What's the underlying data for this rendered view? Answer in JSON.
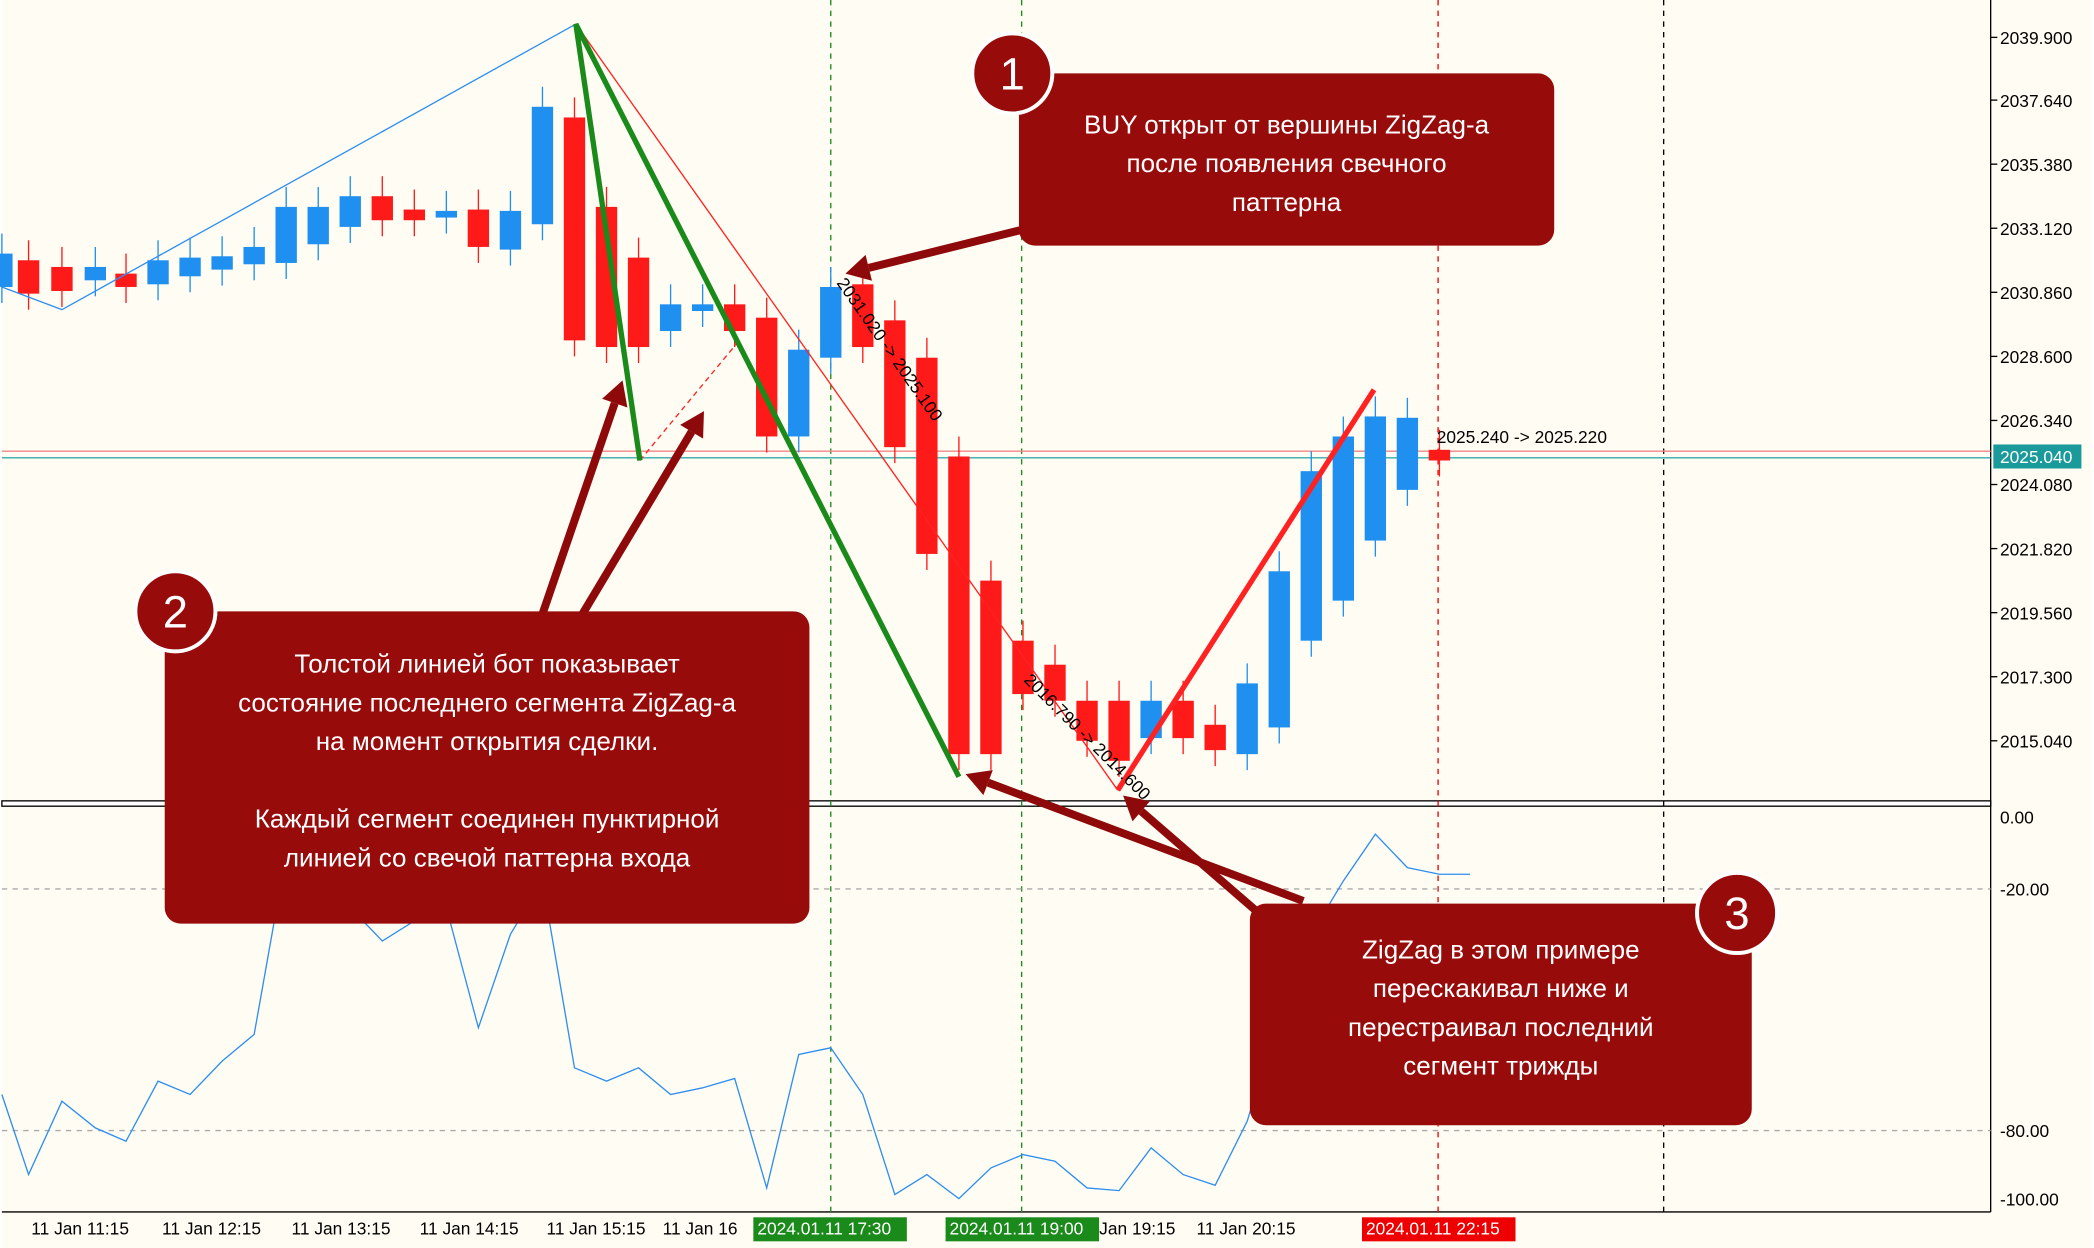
{
  "price_axis": [
    "2039.900",
    "2037.640",
    "2035.380",
    "2033.120",
    "2030.860",
    "2028.600",
    "2026.340",
    "2024.080",
    "2021.820",
    "2019.560",
    "2017.300",
    "2015.040"
  ],
  "current_price": "2025.040",
  "indicator_axis": [
    "0.00",
    "-20.00",
    "-80.00",
    "-100.00"
  ],
  "time_axis": [
    "11 Jan 11:15",
    "11 Jan 12:15",
    "11 Jan 13:15",
    "11 Jan 14:15",
    "11 Jan 15:15",
    "11 Jan 16",
    "11 Jan 19:15",
    "11 Jan 20:15",
    ":15"
  ],
  "time_markers": [
    "2024.01.11 17:30",
    "2024.01.11 19:00",
    "2024.01.11 22:15"
  ],
  "trade_labels": [
    "2025.240 -> 2025.220",
    "2031.020 -> 2025.100",
    "2016.790 -> 2014.600"
  ],
  "callouts": [
    {
      "number": "1",
      "lines": [
        "BUY открыт от вершины ZigZag-а",
        "после появления свечного",
        "паттерна"
      ]
    },
    {
      "number": "2",
      "lines": [
        "Толстой линией бот показывает",
        "состояние последнего сегмента ZigZag-а",
        "на момент открытия сделки.",
        "",
        "Каждый сегмент соединен пунктирной",
        "линией со свечой паттерна входа"
      ]
    },
    {
      "number": "3",
      "lines": [
        "ZigZag в этом примере",
        "перескакивал ниже и",
        "перестраивал последний",
        "сегмент трижды"
      ]
    }
  ]
}
